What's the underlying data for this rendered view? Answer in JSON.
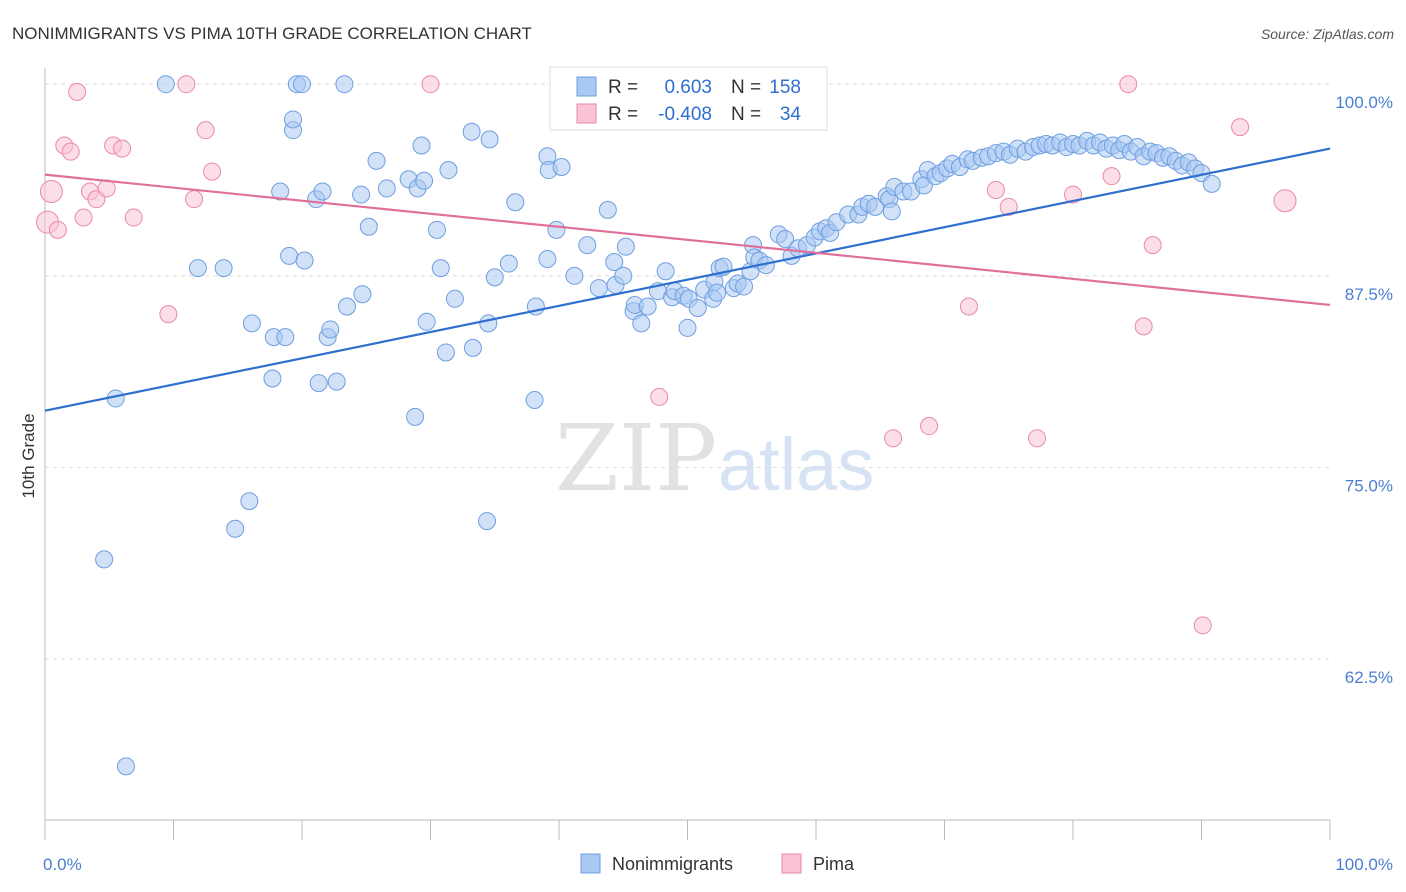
{
  "title": "NONIMMIGRANTS VS PIMA 10TH GRADE CORRELATION CHART",
  "source": "Source: ZipAtlas.com",
  "watermark": {
    "part1": "ZIP",
    "part2": "atlas"
  },
  "legend": {
    "r_label": "R =",
    "n_label": "N =",
    "rows": [
      {
        "r": "0.603",
        "n": "158",
        "color": "#a9c8f2",
        "stroke": "#6f9fe0"
      },
      {
        "r": "-0.408",
        "n": "34",
        "color": "#f9c3d3",
        "stroke": "#e98aa8"
      }
    ]
  },
  "bottom_legend": [
    {
      "label": "Nonimmigrants",
      "color": "#a9c8f2",
      "stroke": "#6f9fe0"
    },
    {
      "label": "Pima",
      "color": "#f9c3d3",
      "stroke": "#e98aa8"
    }
  ],
  "chart_data": {
    "type": "scatter",
    "title": "NONIMMIGRANTS VS PIMA 10TH GRADE CORRELATION CHART",
    "xlabel": "",
    "ylabel": "10th Grade",
    "xlim": [
      0,
      100
    ],
    "ylim": [
      52,
      100.6
    ],
    "x_tick_labels": [
      "0.0%",
      "100.0%"
    ],
    "y_ticks": [
      62.5,
      75.0,
      87.5,
      100.0
    ],
    "y_tick_labels": [
      "62.5%",
      "75.0%",
      "87.5%",
      "100.0%"
    ],
    "grid": "horizontal dashed",
    "series": [
      {
        "name": "Nonimmigrants",
        "color": "#a9c8f2",
        "stroke": "#6f9fe0",
        "trend": {
          "color": "#2f6fcf",
          "x": [
            0,
            100
          ],
          "y": [
            78.7,
            95.8
          ]
        },
        "points": [
          [
            4.6,
            69.0
          ],
          [
            5.5,
            79.5
          ],
          [
            6.3,
            55.5
          ],
          [
            9.4,
            100.0
          ],
          [
            11.9,
            88.0
          ],
          [
            13.9,
            88.0
          ],
          [
            14.8,
            71.0
          ],
          [
            15.9,
            72.8
          ],
          [
            16.1,
            84.4
          ],
          [
            17.7,
            80.8
          ],
          [
            17.8,
            83.5
          ],
          [
            18.3,
            93.0
          ],
          [
            18.7,
            83.5
          ],
          [
            19.0,
            88.8
          ],
          [
            19.3,
            97.0
          ],
          [
            19.3,
            97.7
          ],
          [
            19.6,
            100.0
          ],
          [
            20.0,
            100.0
          ],
          [
            20.2,
            88.5
          ],
          [
            21.1,
            92.5
          ],
          [
            21.3,
            80.5
          ],
          [
            21.6,
            93.0
          ],
          [
            22.0,
            83.5
          ],
          [
            22.2,
            84.0
          ],
          [
            22.7,
            80.6
          ],
          [
            23.3,
            100.0
          ],
          [
            23.5,
            85.5
          ],
          [
            24.6,
            92.8
          ],
          [
            24.7,
            86.3
          ],
          [
            25.2,
            90.7
          ],
          [
            25.8,
            95.0
          ],
          [
            26.6,
            93.2
          ],
          [
            28.3,
            93.8
          ],
          [
            28.8,
            78.3
          ],
          [
            29.0,
            93.2
          ],
          [
            29.3,
            96.0
          ],
          [
            29.5,
            93.7
          ],
          [
            29.7,
            84.5
          ],
          [
            30.5,
            90.5
          ],
          [
            30.8,
            88.0
          ],
          [
            31.2,
            82.5
          ],
          [
            31.4,
            94.4
          ],
          [
            31.9,
            86.0
          ],
          [
            33.2,
            96.9
          ],
          [
            33.3,
            82.8
          ],
          [
            34.4,
            71.5
          ],
          [
            34.5,
            84.4
          ],
          [
            34.6,
            96.4
          ],
          [
            35.0,
            87.4
          ],
          [
            36.1,
            88.3
          ],
          [
            36.6,
            92.3
          ],
          [
            38.1,
            79.4
          ],
          [
            38.2,
            85.5
          ],
          [
            39.1,
            95.3
          ],
          [
            39.1,
            88.6
          ],
          [
            39.2,
            94.4
          ],
          [
            39.8,
            90.5
          ],
          [
            40.2,
            94.6
          ],
          [
            41.2,
            87.5
          ],
          [
            42.2,
            89.5
          ],
          [
            43.1,
            86.7
          ],
          [
            43.8,
            91.8
          ],
          [
            44.3,
            88.4
          ],
          [
            44.4,
            86.9
          ],
          [
            45.0,
            87.5
          ],
          [
            45.2,
            89.4
          ],
          [
            45.8,
            85.2
          ],
          [
            45.9,
            85.6
          ],
          [
            46.4,
            84.4
          ],
          [
            46.9,
            85.5
          ],
          [
            47.7,
            86.5
          ],
          [
            48.3,
            87.8
          ],
          [
            48.8,
            86.1
          ],
          [
            49.0,
            86.5
          ],
          [
            49.7,
            86.2
          ],
          [
            50.0,
            84.1
          ],
          [
            50.1,
            86.0
          ],
          [
            50.8,
            85.4
          ],
          [
            51.3,
            86.6
          ],
          [
            52.0,
            86.0
          ],
          [
            52.1,
            87.1
          ],
          [
            52.3,
            86.4
          ],
          [
            52.5,
            88.0
          ],
          [
            52.8,
            88.1
          ],
          [
            53.6,
            86.7
          ],
          [
            53.9,
            87.0
          ],
          [
            54.4,
            86.8
          ],
          [
            54.9,
            87.8
          ],
          [
            55.1,
            89.5
          ],
          [
            55.2,
            88.7
          ],
          [
            55.6,
            88.5
          ],
          [
            56.1,
            88.2
          ],
          [
            57.1,
            90.2
          ],
          [
            57.6,
            89.9
          ],
          [
            58.1,
            88.8
          ],
          [
            58.6,
            89.3
          ],
          [
            59.3,
            89.5
          ],
          [
            59.9,
            90.0
          ],
          [
            60.3,
            90.4
          ],
          [
            60.8,
            90.6
          ],
          [
            61.1,
            90.3
          ],
          [
            61.6,
            91.0
          ],
          [
            62.5,
            91.5
          ],
          [
            63.3,
            91.5
          ],
          [
            63.6,
            92.0
          ],
          [
            64.1,
            92.2
          ],
          [
            64.6,
            92.0
          ],
          [
            65.5,
            92.7
          ],
          [
            65.7,
            92.5
          ],
          [
            65.9,
            91.7
          ],
          [
            66.1,
            93.3
          ],
          [
            66.8,
            93.0
          ],
          [
            67.4,
            93.0
          ],
          [
            68.2,
            93.8
          ],
          [
            68.4,
            93.4
          ],
          [
            68.7,
            94.4
          ],
          [
            69.3,
            94.0
          ],
          [
            69.7,
            94.2
          ],
          [
            70.2,
            94.5
          ],
          [
            70.6,
            94.8
          ],
          [
            71.2,
            94.6
          ],
          [
            71.8,
            95.1
          ],
          [
            72.2,
            95.0
          ],
          [
            72.9,
            95.2
          ],
          [
            73.4,
            95.3
          ],
          [
            74.0,
            95.5
          ],
          [
            74.6,
            95.6
          ],
          [
            75.1,
            95.4
          ],
          [
            75.7,
            95.8
          ],
          [
            76.3,
            95.6
          ],
          [
            76.9,
            95.9
          ],
          [
            77.4,
            96.0
          ],
          [
            77.9,
            96.1
          ],
          [
            78.4,
            96.0
          ],
          [
            79.0,
            96.2
          ],
          [
            79.5,
            95.9
          ],
          [
            80.0,
            96.1
          ],
          [
            80.5,
            96.0
          ],
          [
            81.1,
            96.3
          ],
          [
            81.6,
            96.0
          ],
          [
            82.1,
            96.2
          ],
          [
            82.6,
            95.8
          ],
          [
            83.1,
            96.0
          ],
          [
            83.6,
            95.7
          ],
          [
            84.0,
            96.1
          ],
          [
            84.5,
            95.6
          ],
          [
            85.0,
            95.9
          ],
          [
            85.5,
            95.3
          ],
          [
            86.0,
            95.6
          ],
          [
            86.5,
            95.5
          ],
          [
            87.0,
            95.2
          ],
          [
            87.5,
            95.3
          ],
          [
            88.0,
            95.0
          ],
          [
            88.5,
            94.7
          ],
          [
            89.0,
            94.9
          ],
          [
            89.5,
            94.5
          ],
          [
            90.0,
            94.2
          ],
          [
            90.8,
            93.5
          ]
        ]
      },
      {
        "name": "Pima",
        "color": "#f9c3d3",
        "stroke": "#e98aa8",
        "trend": {
          "color": "#e0709a",
          "x": [
            0,
            100
          ],
          "y": [
            94.1,
            85.6
          ]
        },
        "points": [
          [
            0.2,
            91.0
          ],
          [
            0.5,
            93.0
          ],
          [
            1.0,
            90.5
          ],
          [
            1.5,
            96.0
          ],
          [
            2.0,
            95.6
          ],
          [
            2.5,
            99.5
          ],
          [
            3.0,
            91.3
          ],
          [
            3.5,
            93.0
          ],
          [
            4.0,
            92.5
          ],
          [
            4.8,
            93.2
          ],
          [
            5.3,
            96.0
          ],
          [
            6.0,
            95.8
          ],
          [
            6.9,
            91.3
          ],
          [
            9.6,
            85.0
          ],
          [
            11.0,
            100.0
          ],
          [
            11.6,
            92.5
          ],
          [
            12.5,
            97.0
          ],
          [
            13.0,
            94.3
          ],
          [
            30.0,
            100.0
          ],
          [
            47.8,
            79.6
          ],
          [
            66.0,
            76.9
          ],
          [
            68.8,
            77.7
          ],
          [
            71.9,
            85.5
          ],
          [
            74.0,
            93.1
          ],
          [
            75.0,
            92.0
          ],
          [
            77.2,
            76.9
          ],
          [
            80.0,
            92.8
          ],
          [
            83.0,
            94.0
          ],
          [
            84.3,
            100.0
          ],
          [
            85.5,
            84.2
          ],
          [
            86.2,
            89.5
          ],
          [
            90.1,
            64.7
          ],
          [
            93.0,
            97.2
          ],
          [
            96.5,
            92.4
          ]
        ]
      }
    ]
  }
}
